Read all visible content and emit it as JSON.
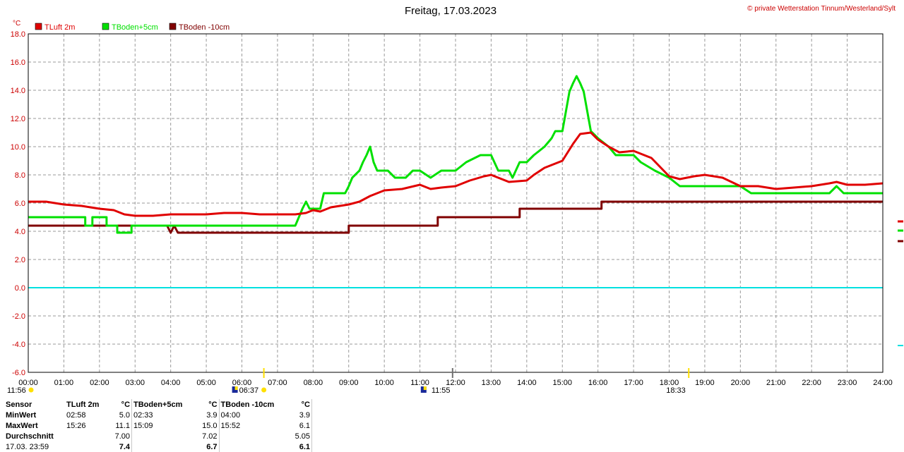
{
  "header": {
    "title": "Freitag, 17.03.2023",
    "credit": "© private Wetterstation Tinnum/Westerland/Sylt"
  },
  "colors": {
    "tluft": "#e00000",
    "tboden5": "#00e000",
    "tboden10": "#800000",
    "zero_line": "#00e0e0",
    "grid": "#9a9a9a",
    "sun_marker": "#ffe000"
  },
  "chart_data": {
    "type": "line",
    "title": "Freitag, 17.03.2023",
    "ylabel": "°C",
    "xlabel": "",
    "xlim": [
      "00:00",
      "24:00"
    ],
    "ylim": [
      -6.0,
      18.0
    ],
    "grid": true,
    "legend_position": "top-left",
    "x_ticks": [
      "00:00",
      "01:00",
      "02:00",
      "03:00",
      "04:00",
      "05:00",
      "06:00",
      "07:00",
      "08:00",
      "09:00",
      "10:00",
      "11:00",
      "12:00",
      "13:00",
      "14:00",
      "15:00",
      "16:00",
      "17:00",
      "18:00",
      "19:00",
      "20:00",
      "21:00",
      "22:00",
      "23:00",
      "24:00"
    ],
    "y_ticks": [
      "18.0",
      "16.0",
      "14.0",
      "12.0",
      "10.0",
      "8.0",
      "6.0",
      "4.0",
      "2.0",
      "0.0",
      "-2.0",
      "-4.0",
      "-6.0"
    ],
    "reference_line": {
      "y": 0.0
    },
    "series": [
      {
        "name": "TLuft 2m",
        "color": "#e00000",
        "points": [
          [
            0,
            6.1
          ],
          [
            0.5,
            6.1
          ],
          [
            1,
            5.9
          ],
          [
            1.5,
            5.8
          ],
          [
            2,
            5.6
          ],
          [
            2.4,
            5.5
          ],
          [
            2.7,
            5.2
          ],
          [
            3,
            5.1
          ],
          [
            3.5,
            5.1
          ],
          [
            4,
            5.2
          ],
          [
            4.5,
            5.2
          ],
          [
            5,
            5.2
          ],
          [
            5.5,
            5.3
          ],
          [
            6,
            5.3
          ],
          [
            6.5,
            5.2
          ],
          [
            7,
            5.2
          ],
          [
            7.5,
            5.2
          ],
          [
            7.8,
            5.3
          ],
          [
            8,
            5.5
          ],
          [
            8.2,
            5.4
          ],
          [
            8.5,
            5.7
          ],
          [
            9,
            5.9
          ],
          [
            9.3,
            6.1
          ],
          [
            9.6,
            6.5
          ],
          [
            10,
            6.9
          ],
          [
            10.5,
            7.0
          ],
          [
            11,
            7.3
          ],
          [
            11.3,
            7.0
          ],
          [
            11.6,
            7.1
          ],
          [
            12,
            7.2
          ],
          [
            12.4,
            7.6
          ],
          [
            12.8,
            7.9
          ],
          [
            13,
            8.0
          ],
          [
            13.5,
            7.5
          ],
          [
            14,
            7.6
          ],
          [
            14.2,
            8.0
          ],
          [
            14.5,
            8.5
          ],
          [
            15,
            9.0
          ],
          [
            15.3,
            10.2
          ],
          [
            15.5,
            10.9
          ],
          [
            15.8,
            11.0
          ],
          [
            16,
            10.5
          ],
          [
            16.3,
            10.0
          ],
          [
            16.6,
            9.6
          ],
          [
            17,
            9.7
          ],
          [
            17.5,
            9.2
          ],
          [
            18,
            7.9
          ],
          [
            18.3,
            7.7
          ],
          [
            18.7,
            7.9
          ],
          [
            19,
            8.0
          ],
          [
            19.5,
            7.8
          ],
          [
            20,
            7.2
          ],
          [
            20.5,
            7.2
          ],
          [
            21,
            7.0
          ],
          [
            21.5,
            7.1
          ],
          [
            22,
            7.2
          ],
          [
            22.5,
            7.4
          ],
          [
            22.7,
            7.5
          ],
          [
            23,
            7.3
          ],
          [
            23.5,
            7.3
          ],
          [
            24,
            7.4
          ]
        ]
      },
      {
        "name": "TBoden+5cm",
        "color": "#00e000",
        "points": [
          [
            0,
            5.0
          ],
          [
            1.6,
            5.0
          ],
          [
            1.6,
            4.4
          ],
          [
            1.8,
            4.4
          ],
          [
            1.8,
            5.0
          ],
          [
            2.2,
            5.0
          ],
          [
            2.2,
            4.4
          ],
          [
            2.5,
            4.4
          ],
          [
            2.5,
            3.9
          ],
          [
            2.9,
            3.9
          ],
          [
            2.9,
            4.4
          ],
          [
            7.5,
            4.4
          ],
          [
            7.6,
            5.0
          ],
          [
            7.7,
            5.6
          ],
          [
            7.8,
            6.1
          ],
          [
            7.9,
            5.6
          ],
          [
            8.2,
            5.6
          ],
          [
            8.3,
            6.7
          ],
          [
            8.9,
            6.7
          ],
          [
            9,
            7.2
          ],
          [
            9.1,
            7.8
          ],
          [
            9.3,
            8.3
          ],
          [
            9.4,
            8.9
          ],
          [
            9.5,
            9.4
          ],
          [
            9.6,
            10.0
          ],
          [
            9.7,
            8.9
          ],
          [
            9.8,
            8.3
          ],
          [
            10,
            8.3
          ],
          [
            10.1,
            8.3
          ],
          [
            10.3,
            7.8
          ],
          [
            10.6,
            7.8
          ],
          [
            10.8,
            8.3
          ],
          [
            11,
            8.3
          ],
          [
            11.3,
            7.8
          ],
          [
            11.6,
            8.3
          ],
          [
            12,
            8.3
          ],
          [
            12.3,
            8.9
          ],
          [
            12.7,
            9.4
          ],
          [
            13,
            9.4
          ],
          [
            13.2,
            8.3
          ],
          [
            13.5,
            8.3
          ],
          [
            13.6,
            7.8
          ],
          [
            13.8,
            8.9
          ],
          [
            14,
            8.9
          ],
          [
            14.2,
            9.4
          ],
          [
            14.5,
            10.0
          ],
          [
            14.7,
            10.6
          ],
          [
            14.8,
            11.1
          ],
          [
            15,
            11.1
          ],
          [
            15.2,
            13.9
          ],
          [
            15.3,
            14.5
          ],
          [
            15.4,
            15.0
          ],
          [
            15.5,
            14.5
          ],
          [
            15.6,
            13.9
          ],
          [
            15.8,
            11.1
          ],
          [
            16,
            10.6
          ],
          [
            16.3,
            10.0
          ],
          [
            16.5,
            9.4
          ],
          [
            17,
            9.4
          ],
          [
            17.2,
            8.9
          ],
          [
            17.6,
            8.3
          ],
          [
            18,
            7.8
          ],
          [
            18.3,
            7.2
          ],
          [
            20,
            7.2
          ],
          [
            20.3,
            6.7
          ],
          [
            22.5,
            6.7
          ],
          [
            22.7,
            7.2
          ],
          [
            22.9,
            6.7
          ],
          [
            24,
            6.7
          ]
        ]
      },
      {
        "name": "TBoden -10cm",
        "color": "#800000",
        "points": [
          [
            0,
            4.4
          ],
          [
            3.9,
            4.4
          ],
          [
            4,
            3.9
          ],
          [
            4.1,
            4.4
          ],
          [
            4.2,
            3.9
          ],
          [
            9,
            3.9
          ],
          [
            9,
            4.4
          ],
          [
            11.5,
            4.4
          ],
          [
            11.5,
            5.0
          ],
          [
            13.8,
            5.0
          ],
          [
            13.8,
            5.6
          ],
          [
            16.1,
            5.6
          ],
          [
            16.1,
            6.1
          ],
          [
            24,
            6.1
          ]
        ]
      }
    ],
    "markers": [
      {
        "time": "11:56",
        "kind": "moon",
        "pos": 0
      },
      {
        "time": "06:37",
        "kind": "sunrise",
        "pos": 6.617
      },
      {
        "time": "11:55",
        "kind": "noon",
        "pos": 11.917
      },
      {
        "time": "18:33",
        "kind": "sunset",
        "pos": 18.55
      }
    ]
  },
  "legend": [
    {
      "label": "TLuft 2m",
      "color": "#e00000"
    },
    {
      "label": "TBoden+5cm",
      "color": "#00e000"
    },
    {
      "label": "TBoden -10cm",
      "color": "#800000"
    }
  ],
  "stats": {
    "headers": {
      "sensor": "Sensor",
      "s1": "TLuft 2m",
      "u1": "°C",
      "s2": "TBoden+5cm",
      "u2": "°C",
      "s3": "TBoden -10cm",
      "u3": "°C"
    },
    "rows": [
      {
        "label": "MinWert",
        "t1": "02:58",
        "v1": "5.0",
        "t2": "02:33",
        "v2": "3.9",
        "t3": "04:00",
        "v3": "3.9"
      },
      {
        "label": "MaxWert",
        "t1": "15:26",
        "v1": "11.1",
        "t2": "15:09",
        "v2": "15.0",
        "t3": "15:52",
        "v3": "6.1"
      },
      {
        "label": "Durchschnitt",
        "t1": "",
        "v1": "7.00",
        "t2": "",
        "v2": "7.02",
        "t3": "",
        "v3": "5.05"
      },
      {
        "label": "17.03. 23:59",
        "t1": "",
        "v1": "7.4",
        "t2": "",
        "v2": "6.7",
        "t3": "",
        "v3": "6.1"
      }
    ]
  }
}
